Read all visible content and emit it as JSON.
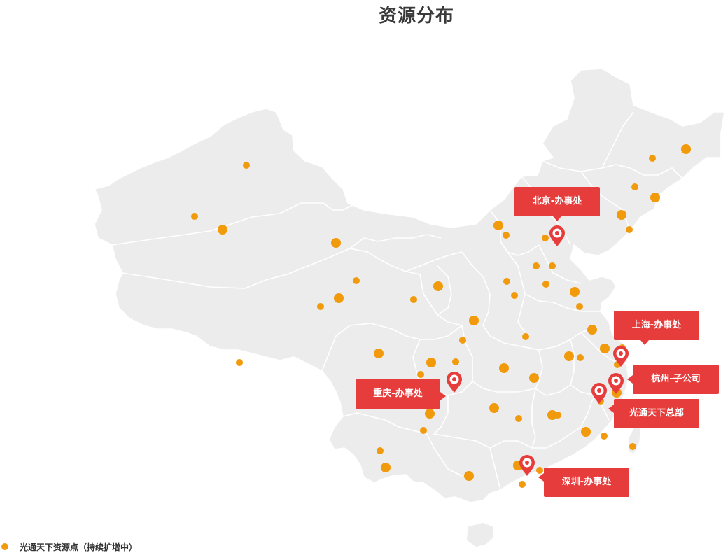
{
  "title": "资源分布",
  "colors": {
    "map_fill": "#ececec",
    "dot": "#f09a0c",
    "callout": "#e63c3c"
  },
  "offices": {
    "beijing": "北京-办事处",
    "shanghai": "上海-办事处",
    "hangzhou": "杭州-子公司",
    "headquarters": "光通天下总部",
    "chongqing": "重庆-办事处",
    "shenzhen": "深圳-办事处"
  },
  "legend": {
    "label": "光通天下资源点（持续扩增中）",
    "icon": "orange-dot-icon"
  }
}
